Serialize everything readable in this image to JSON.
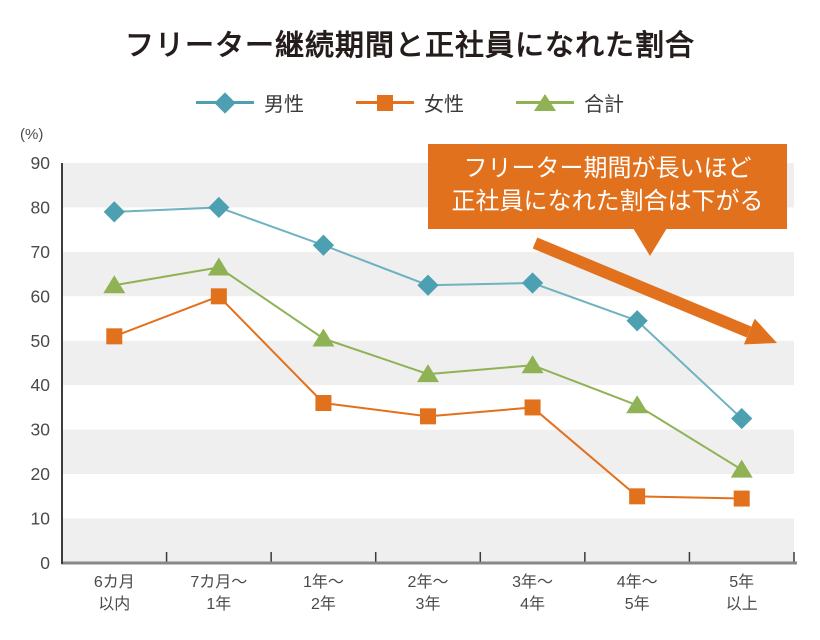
{
  "title": "フリーター継続期間と正社員になれた割合",
  "legend": {
    "items": [
      {
        "label": "男性",
        "shape": "diamond",
        "color": "#4D9FB2"
      },
      {
        "label": "女性",
        "shape": "square",
        "color": "#E2711D"
      },
      {
        "label": "合計",
        "shape": "triangle",
        "color": "#8FB254"
      }
    ]
  },
  "annotation": {
    "line1": "フリーター期間が長いほど",
    "line2": "正社員になれた割合は下がる",
    "bg_color": "#E2711D",
    "text_color": "#FFFFFF"
  },
  "chart_data": {
    "type": "line",
    "title": "フリーター継続期間と正社員になれた割合",
    "unit_label": "(%)",
    "categories": [
      "6カ月\n以内",
      "7カ月〜\n1年",
      "1年〜\n2年",
      "2年〜\n3年",
      "3年〜\n4年",
      "4年〜\n5年",
      "5年\n以上"
    ],
    "series": [
      {
        "name": "男性",
        "marker": "diamond",
        "color": "#4D9FB2",
        "line_color": "#6FB3C1",
        "values": [
          79,
          80,
          71.5,
          62.5,
          63,
          54.5,
          32.5
        ]
      },
      {
        "name": "女性",
        "marker": "square",
        "color": "#E2711D",
        "line_color": "#E2711D",
        "values": [
          51,
          60,
          36,
          33,
          35,
          15,
          14.5
        ]
      },
      {
        "name": "合計",
        "marker": "triangle",
        "color": "#8FB254",
        "line_color": "#8FB254",
        "values": [
          62.5,
          66.5,
          50.5,
          42.5,
          44.5,
          35.5,
          21
        ]
      }
    ],
    "ylim": [
      0,
      90
    ],
    "y_ticks": [
      90,
      80,
      70,
      60,
      50,
      40,
      30,
      20,
      10,
      0
    ],
    "band_color": "#EFEFEF",
    "grid": "banded",
    "legend_position": "top",
    "annotation_arrow": {
      "from": [
        535,
        243
      ],
      "to": [
        749,
        332
      ],
      "tip": [
        777,
        343
      ],
      "color": "#E2711D"
    }
  }
}
